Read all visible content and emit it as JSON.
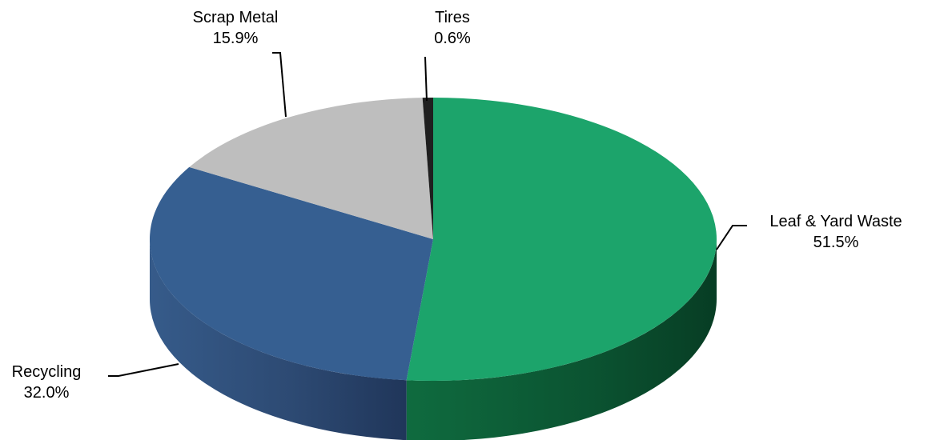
{
  "chart_data": {
    "type": "pie",
    "style": "3d",
    "series": [
      {
        "values": [
          {
            "label": "Leaf & Yard Waste",
            "value": 51.5,
            "value_label": "51.5%",
            "color": "#1ca46b"
          },
          {
            "label": "Recycling",
            "value": 32.0,
            "value_label": "32.0%",
            "color": "#365f91"
          },
          {
            "label": "Scrap Metal",
            "value": 15.9,
            "value_label": "15.9%",
            "color": "#bebebe"
          },
          {
            "label": "Tires",
            "value": 0.6,
            "value_label": "0.6%",
            "color": "#1f1f1f"
          }
        ]
      }
    ],
    "legend": "none"
  }
}
